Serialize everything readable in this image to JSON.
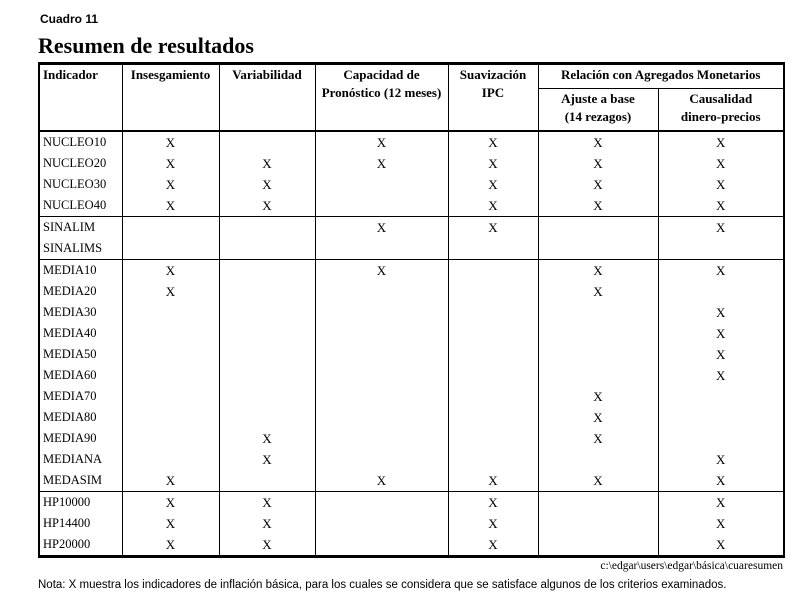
{
  "page": {
    "kicker": "Cuadro 11",
    "title": "Resumen de resultados"
  },
  "table": {
    "columns": [
      {
        "label": "Indicador"
      },
      {
        "label": "Insesgamiento"
      },
      {
        "label": "Variabilidad"
      },
      {
        "label": "Capacidad de\nPronóstico (12 meses)"
      },
      {
        "label": "Suavización\nIPC"
      },
      {
        "label": "Relación con Agregados Monetarios",
        "children": [
          {
            "label": "Ajuste a base\n(14 rezagos)"
          },
          {
            "label": "Causalidad\ndinero-precios"
          }
        ]
      }
    ],
    "mark_symbol": "X",
    "rows": [
      {
        "label": "NUCLEO10",
        "group_start": false,
        "marks": [
          "X",
          "",
          "X",
          "X",
          "X",
          "X"
        ]
      },
      {
        "label": "NUCLEO20",
        "group_start": false,
        "marks": [
          "X",
          "X",
          "X",
          "X",
          "X",
          "X"
        ]
      },
      {
        "label": "NUCLEO30",
        "group_start": false,
        "marks": [
          "X",
          "X",
          "",
          "X",
          "X",
          "X"
        ]
      },
      {
        "label": "NUCLEO40",
        "group_start": false,
        "marks": [
          "X",
          "X",
          "",
          "X",
          "X",
          "X"
        ]
      },
      {
        "label": "SINALIM",
        "group_start": true,
        "marks": [
          "",
          "",
          "X",
          "X",
          "",
          "X"
        ]
      },
      {
        "label": "SINALIMS",
        "group_start": false,
        "marks": [
          "",
          "",
          "",
          "",
          "",
          ""
        ]
      },
      {
        "label": "MEDIA10",
        "group_start": true,
        "marks": [
          "X",
          "",
          "X",
          "",
          "X",
          "X"
        ]
      },
      {
        "label": "MEDIA20",
        "group_start": false,
        "marks": [
          "X",
          "",
          "",
          "",
          "X",
          ""
        ]
      },
      {
        "label": "MEDIA30",
        "group_start": false,
        "marks": [
          "",
          "",
          "",
          "",
          "",
          "X"
        ]
      },
      {
        "label": "MEDIA40",
        "group_start": false,
        "marks": [
          "",
          "",
          "",
          "",
          "",
          "X"
        ]
      },
      {
        "label": "MEDIA50",
        "group_start": false,
        "marks": [
          "",
          "",
          "",
          "",
          "",
          "X"
        ]
      },
      {
        "label": "MEDIA60",
        "group_start": false,
        "marks": [
          "",
          "",
          "",
          "",
          "",
          "X"
        ]
      },
      {
        "label": "MEDIA70",
        "group_start": false,
        "marks": [
          "",
          "",
          "",
          "",
          "X",
          ""
        ]
      },
      {
        "label": "MEDIA80",
        "group_start": false,
        "marks": [
          "",
          "",
          "",
          "",
          "X",
          ""
        ]
      },
      {
        "label": "MEDIA90",
        "group_start": false,
        "marks": [
          "",
          "X",
          "",
          "",
          "X",
          ""
        ]
      },
      {
        "label": "MEDIANA",
        "group_start": false,
        "marks": [
          "",
          "X",
          "",
          "",
          "",
          "X"
        ]
      },
      {
        "label": "MEDASIM",
        "group_start": false,
        "marks": [
          "X",
          "",
          "X",
          "X",
          "X",
          "X"
        ]
      },
      {
        "label": "HP10000",
        "group_start": true,
        "marks": [
          "X",
          "X",
          "",
          "X",
          "",
          "X"
        ]
      },
      {
        "label": "HP14400",
        "group_start": false,
        "marks": [
          "X",
          "X",
          "",
          "X",
          "",
          "X"
        ]
      },
      {
        "label": "HP20000",
        "group_start": false,
        "marks": [
          "X",
          "X",
          "",
          "X",
          "",
          "X"
        ]
      }
    ]
  },
  "footer": {
    "path": "c:\\edgar\\users\\edgar\\básica\\cuaresumen",
    "note": "Nota: X muestra los indicadores de inflación básica, para los cuales se considera que se satisface algunos de los criterios examinados."
  },
  "colors": {
    "text": "#000000",
    "background": "#ffffff",
    "border": "#000000"
  }
}
